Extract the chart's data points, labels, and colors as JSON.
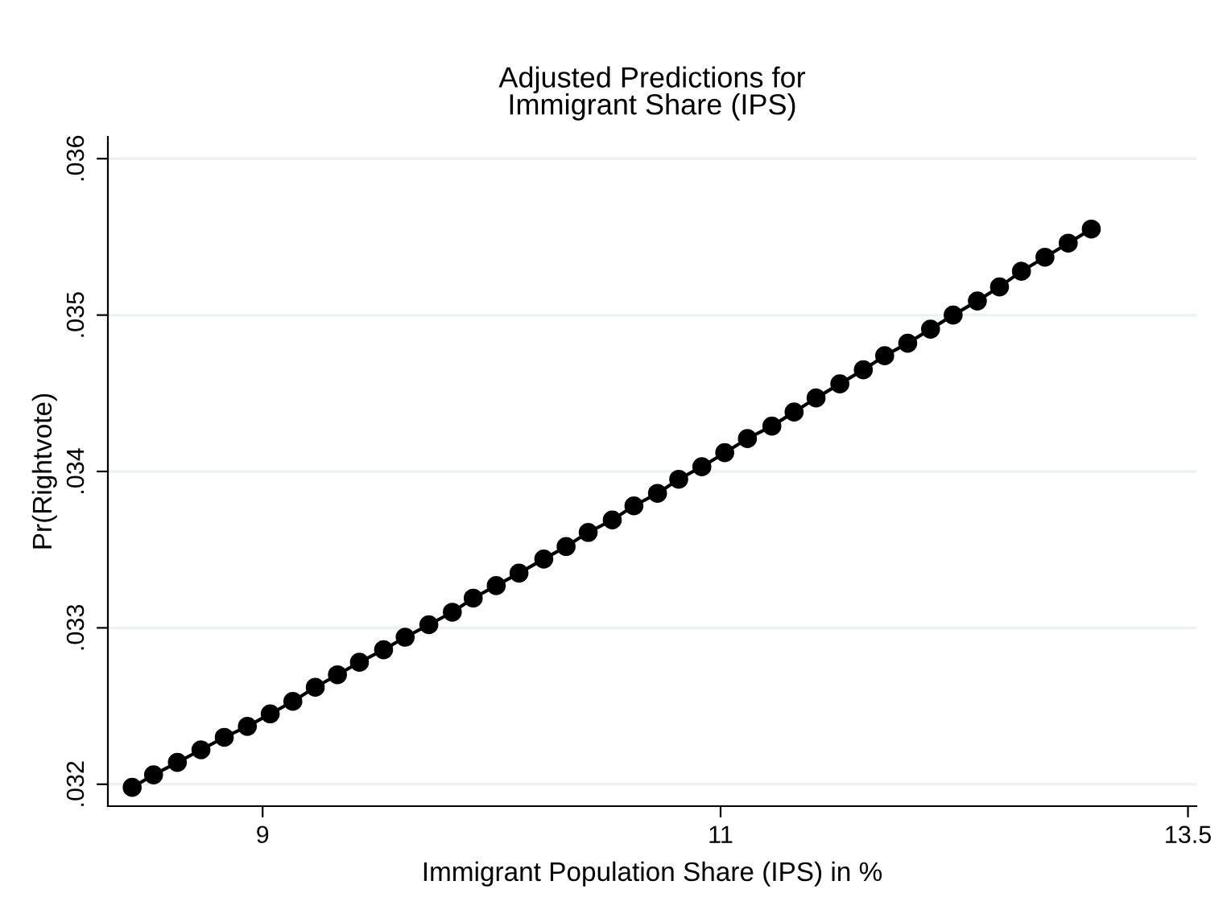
{
  "chart_data": {
    "type": "line",
    "title": "Adjusted Predictions for\nImmigrant Share (IPS)",
    "xlabel": "Immigrant Population Share (IPS) in %",
    "ylabel": "Pr(Rightvote)",
    "x": [
      8.5,
      8.58,
      8.67,
      8.76,
      8.85,
      8.94,
      9.03,
      9.12,
      9.21,
      9.3,
      9.39,
      9.49,
      9.58,
      9.68,
      9.78,
      9.87,
      9.97,
      10.07,
      10.18,
      10.28,
      10.38,
      10.49,
      10.59,
      10.7,
      10.8,
      10.91,
      11.02,
      11.13,
      11.25,
      11.36,
      11.47,
      11.59,
      11.71,
      11.82,
      11.94,
      12.06,
      12.18,
      12.31,
      12.43,
      12.55,
      12.68,
      12.81,
      12.94
    ],
    "series": [
      {
        "color": "#000000",
        "values": [
          0.03198,
          0.03206,
          0.03214,
          0.03222,
          0.0323,
          0.03237,
          0.03245,
          0.03253,
          0.03262,
          0.0327,
          0.03278,
          0.03286,
          0.03294,
          0.03302,
          0.0331,
          0.03319,
          0.03327,
          0.03335,
          0.03344,
          0.03352,
          0.03361,
          0.03369,
          0.03378,
          0.03386,
          0.03395,
          0.03403,
          0.03412,
          0.03421,
          0.03429,
          0.03438,
          0.03447,
          0.03456,
          0.03465,
          0.03474,
          0.03482,
          0.03491,
          0.035,
          0.03509,
          0.03518,
          0.03528,
          0.03537,
          0.03546,
          0.03555
        ]
      }
    ],
    "log": "x",
    "xlim": [
      8.41,
      13.55
    ],
    "xticks": [
      9,
      11,
      13.5
    ],
    "ylim": [
      0.03186,
      0.03614
    ],
    "yticks": [
      {
        "value": 0.032,
        "label": ".032"
      },
      {
        "value": 0.033,
        "label": ".033"
      },
      {
        "value": 0.034,
        "label": ".034"
      },
      {
        "value": 0.035,
        "label": ".035"
      },
      {
        "value": 0.036,
        "label": ".036"
      }
    ],
    "grid": "y",
    "marker": "circle",
    "line_style": "solid"
  }
}
